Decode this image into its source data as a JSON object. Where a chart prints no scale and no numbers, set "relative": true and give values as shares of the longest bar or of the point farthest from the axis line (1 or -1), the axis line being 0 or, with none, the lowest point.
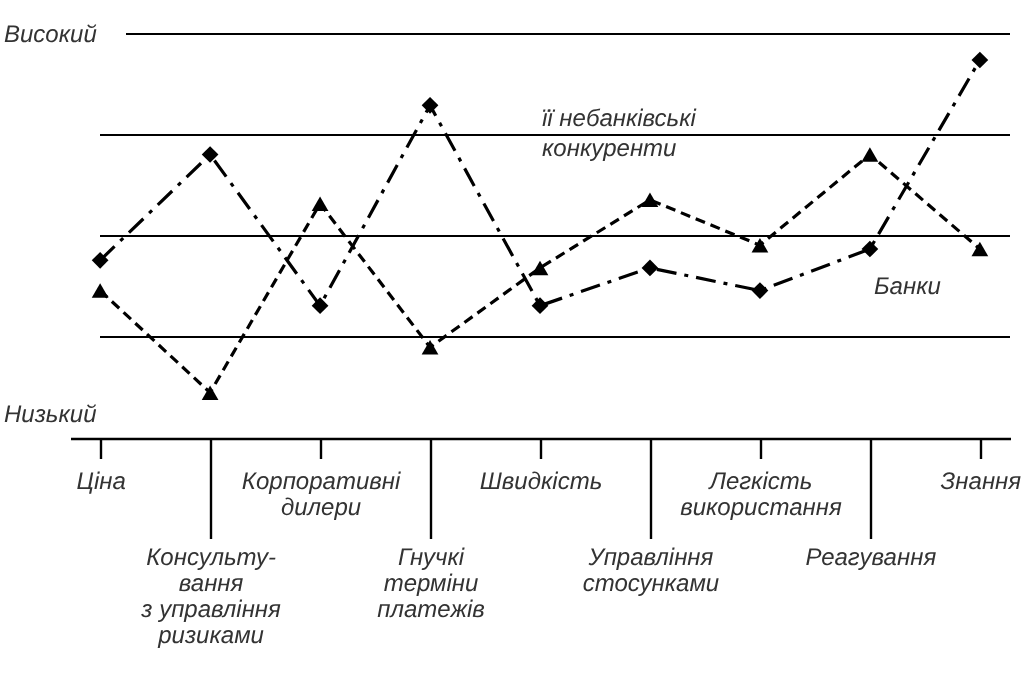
{
  "chart_data": {
    "type": "line",
    "relative": true,
    "grid": "y",
    "legend": false,
    "categories": [
      "Ціна",
      "Консульту-\nвання\nз управління\nризиками",
      "Корпоративні\nдилери",
      "Гнучкі\nтерміни\nплатежів",
      "Швидкість",
      "Управління\nстосунками",
      "Легкість\nвикористання",
      "Реагування",
      "Знання"
    ],
    "series": [
      {
        "name": "Банки",
        "color": "#000000",
        "marker": "diamond",
        "line_style": "dashdot",
        "values": [
          0.47,
          0.75,
          0.35,
          0.88,
          0.35,
          0.45,
          0.39,
          0.5,
          1
        ]
      },
      {
        "name": "її небанківські\nконкуренти",
        "color": "#000000",
        "marker": "triangle",
        "line_style": "dashed",
        "values": [
          0.39,
          0.12,
          0.62,
          0.24,
          0.45,
          0.63,
          0.51,
          0.75,
          0.5
        ]
      }
    ],
    "annotations": [
      "Високий",
      "Низький"
    ]
  }
}
